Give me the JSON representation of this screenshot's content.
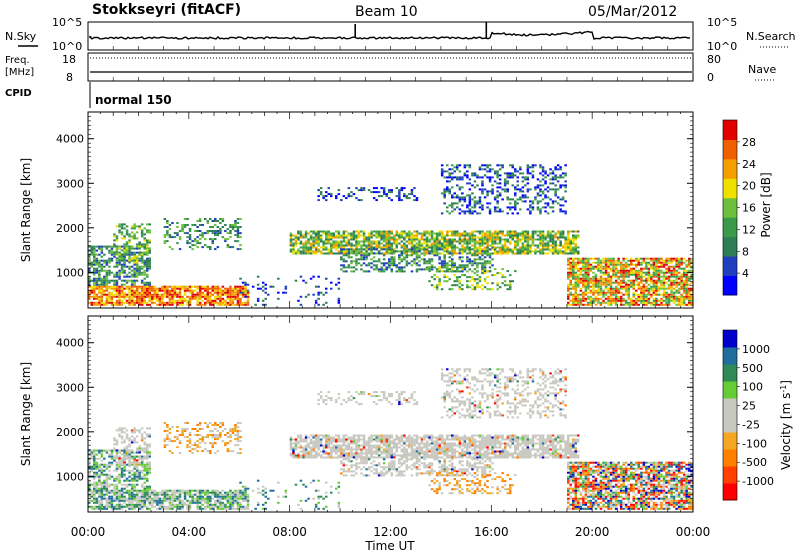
{
  "header": {
    "station": "Stokkseyri (fitACF)",
    "beam": "Beam 10",
    "date": "05/Mar/2012"
  },
  "summary_panels": {
    "nsky_label": "N.Sky",
    "nsky_ticks": [
      "10^5",
      "10^0"
    ],
    "nsearch_label": "N.Search",
    "nsearch_ticks": [
      "10^5",
      "10^0"
    ],
    "freq_label_line1": "Freq.",
    "freq_label_line2": "[MHz]",
    "freq_ticks": [
      "18",
      "8"
    ],
    "nave_label": "Nave",
    "nave_ticks": [
      "80",
      "0"
    ],
    "cpid_label": "CPID",
    "cpid_value": "normal 150"
  },
  "colors": {
    "power_scale": [
      "#0000ff",
      "#1f3fbf",
      "#2e7d55",
      "#3a9a4a",
      "#6cc03c",
      "#f0e000",
      "#f5a000",
      "#f06000",
      "#e00000"
    ],
    "velocity_scale": [
      "#ff0000",
      "#ff4000",
      "#ff7f00",
      "#f5a623",
      "#c8c8c0",
      "#c8c8c0",
      "#66cc33",
      "#2e8b57",
      "#1f6e9e",
      "#0000cc"
    ],
    "ground_scatter": "#c8c8c0"
  },
  "chart_data": [
    {
      "type": "heatmap",
      "name": "power",
      "ylabel": "Slant Range [km]",
      "yticks": [
        "1000",
        "2000",
        "3000",
        "4000"
      ],
      "ylim": [
        200,
        4600
      ],
      "xlim_hours": [
        0,
        24
      ],
      "xticks": [
        "00:00",
        "04:00",
        "08:00",
        "12:00",
        "16:00",
        "20:00",
        "00:00"
      ],
      "colorbar_label": "Power [dB]",
      "colorbar_ticks": [
        "4",
        "8",
        "12",
        "16",
        "20",
        "24",
        "28"
      ],
      "colorbar_range": [
        0,
        32
      ]
    },
    {
      "type": "heatmap",
      "name": "velocity",
      "ylabel": "Slant Range [km]",
      "yticks": [
        "1000",
        "2000",
        "3000",
        "4000"
      ],
      "ylim": [
        200,
        4600
      ],
      "xlim_hours": [
        0,
        24
      ],
      "xticks": [
        "00:00",
        "04:00",
        "08:00",
        "12:00",
        "16:00",
        "20:00",
        "00:00"
      ],
      "xlabel": "Time UT",
      "colorbar_label": "Velocity [m s^-1]",
      "colorbar_ticks": [
        "-1000",
        "-500",
        "-100",
        "-25",
        "25",
        "100",
        "500",
        "1000"
      ]
    }
  ]
}
